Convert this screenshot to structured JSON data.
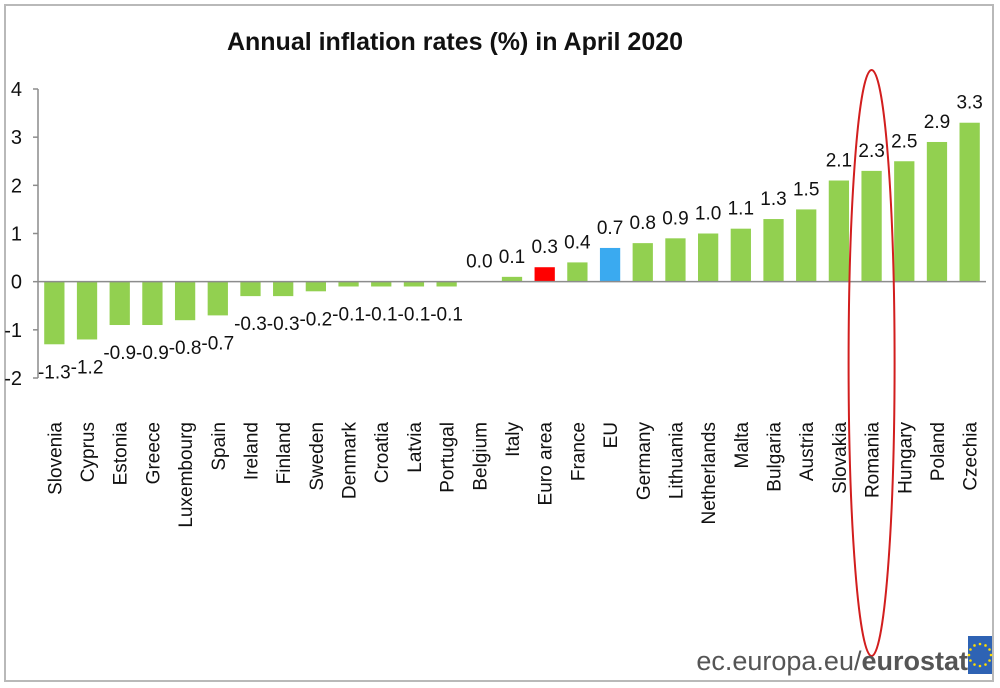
{
  "chart_data": {
    "type": "bar",
    "title": "Annual inflation rates (%) in April 2020",
    "xlabel": "",
    "ylabel": "",
    "ylim": [
      -2,
      4
    ],
    "yticks": [
      "-2",
      "-1",
      "0",
      "1",
      "2",
      "3",
      "4"
    ],
    "categories": [
      "Slovenia",
      "Cyprus",
      "Estonia",
      "Greece",
      "Luxembourg",
      "Spain",
      "Ireland",
      "Finland",
      "Sweden",
      "Denmark",
      "Croatia",
      "Latvia",
      "Portugal",
      "Belgium",
      "Italy",
      "Euro area",
      "France",
      "EU",
      "Germany",
      "Lithuania",
      "Netherlands",
      "Malta",
      "Bulgaria",
      "Austria",
      "Slovakia",
      "Romania",
      "Hungary",
      "Poland",
      "Czechia"
    ],
    "values": [
      -1.3,
      -1.2,
      -0.9,
      -0.9,
      -0.8,
      -0.7,
      -0.3,
      -0.3,
      -0.2,
      -0.1,
      -0.1,
      -0.1,
      -0.1,
      0.0,
      0.1,
      0.3,
      0.4,
      0.7,
      0.8,
      0.9,
      1.0,
      1.1,
      1.3,
      1.5,
      2.1,
      2.3,
      2.5,
      2.9,
      3.3
    ],
    "value_labels": [
      "-1.3",
      "-1.2",
      "-0.9",
      "-0.9",
      "-0.8",
      "-0.7",
      "-0.3",
      "-0.3",
      "-0.2",
      "-0.1",
      "-0.1",
      "-0.1",
      "-0.1",
      "0.0",
      "0.1",
      "0.3",
      "0.4",
      "0.7",
      "0.8",
      "0.9",
      "1.0",
      "1.1",
      "1.3",
      "1.5",
      "2.1",
      "2.3",
      "2.5",
      "2.9",
      "3.3"
    ],
    "colors": {
      "default": "#92d050",
      "Euro area": "#ff0000",
      "EU": "#3aaaf0",
      "axis": "#8c8c8c",
      "highlight_ring": "#d21e1e"
    },
    "highlight": "Romania",
    "grid": false
  },
  "footer": {
    "source_plain": "ec.europa.eu/",
    "source_bold": "eurostat",
    "logo_icon": "eu-flag-icon",
    "logo_color": "#2e63b4",
    "star_color": "#ffdd00"
  }
}
